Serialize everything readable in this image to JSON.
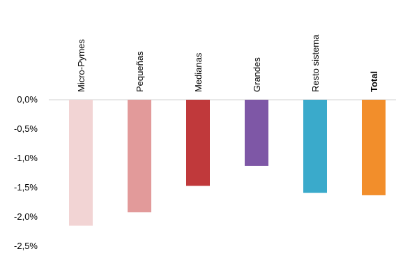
{
  "chart_data": {
    "type": "bar",
    "title": "",
    "xlabel": "",
    "ylabel": "",
    "categories": [
      "Micro-Pymes",
      "Pequeñas",
      "Medianas",
      "Grandes",
      "Resto sistema",
      "Total"
    ],
    "values": [
      -2.15,
      -1.92,
      -1.47,
      -1.13,
      -1.59,
      -1.63
    ],
    "colors": [
      "#f2d4d4",
      "#e29a9a",
      "#c0393b",
      "#7e57a6",
      "#3aaacb",
      "#f28e2b"
    ],
    "bold_categories": [
      "Total"
    ],
    "ylim": [
      -2.5,
      0.0
    ],
    "yticks": [
      "0,0%",
      "-0,5%",
      "-1,0%",
      "-1,5%",
      "-2,0%",
      "-2,5%"
    ],
    "grid": false
  }
}
